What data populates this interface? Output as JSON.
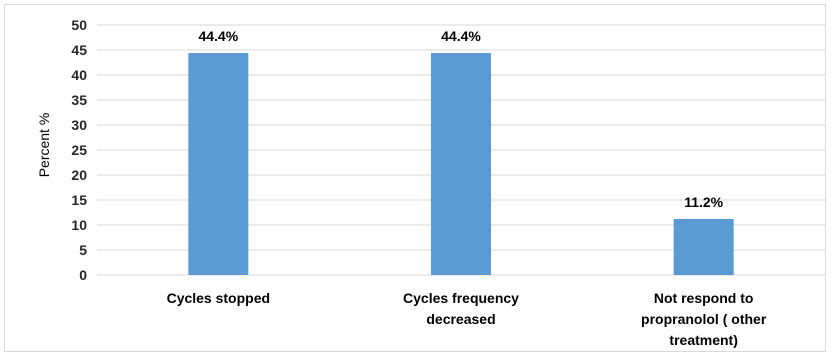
{
  "chart_data": {
    "type": "bar",
    "title": "",
    "xlabel": "",
    "ylabel": "Percent %",
    "ylim": [
      0,
      50
    ],
    "ytick_step": 5,
    "grid": true,
    "legend": "none",
    "bar_color": "#5b9bd5",
    "gridline_color": "#d9d9d9",
    "categories": [
      [
        "Cycles stopped"
      ],
      [
        "Cycles frequency",
        "decreased"
      ],
      [
        "Not respond to",
        "propranolol ( other",
        "treatment)"
      ]
    ],
    "values": [
      44.4,
      44.4,
      11.2
    ],
    "data_labels": [
      "44.4%",
      "44.4%",
      "11.2%"
    ]
  }
}
